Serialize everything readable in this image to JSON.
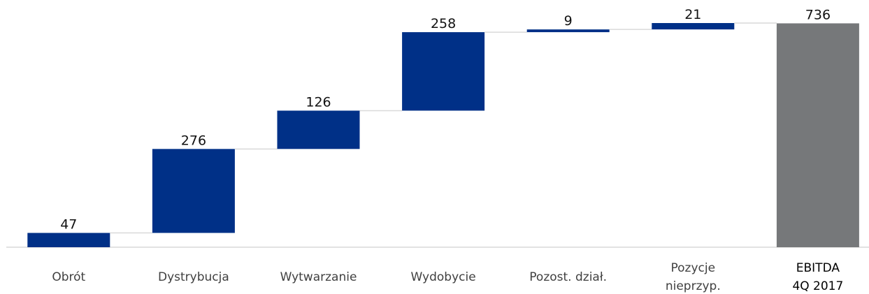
{
  "chart_data": {
    "type": "waterfall",
    "categories": [
      "Obrót",
      "Dystrybucja",
      "Wytwarzanie",
      "Wydobycie",
      "Pozost. dział.",
      "Pozycje\nnieprzyp.",
      "EBITDA\n4Q 2017"
    ],
    "values": [
      47,
      276,
      126,
      258,
      9,
      21,
      736
    ],
    "is_total": [
      false,
      false,
      false,
      false,
      false,
      false,
      true
    ],
    "colors": [
      "#003087",
      "#003087",
      "#003087",
      "#003087",
      "#003087",
      "#003087",
      "#76787a"
    ]
  }
}
